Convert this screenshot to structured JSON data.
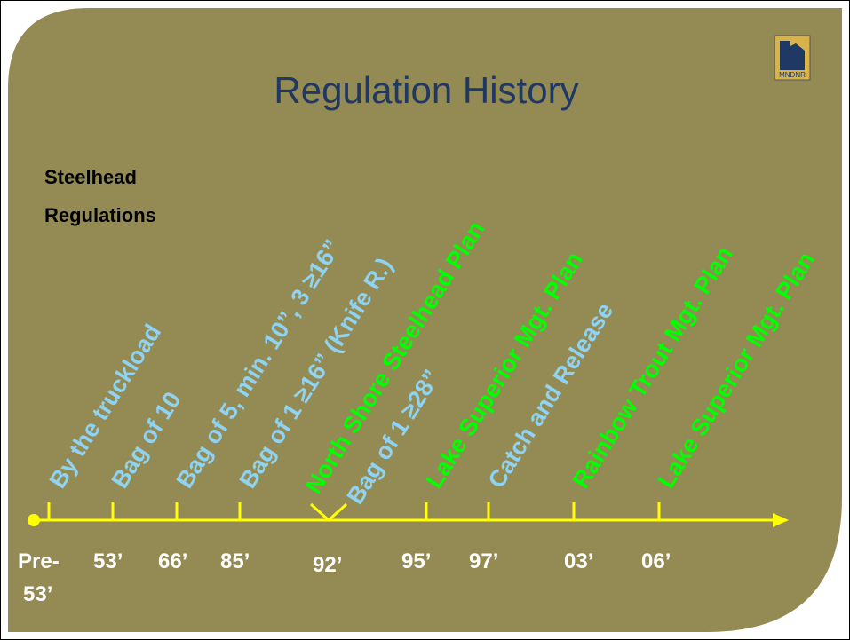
{
  "slide": {
    "title": "Regulation History",
    "logo": "MNDNR",
    "side_label": [
      "Steelhead",
      "Regulations"
    ],
    "events": [
      {
        "text": "By the truckload",
        "color": "#8fd3f2"
      },
      {
        "text": "Bag of 10",
        "color": "#8fd3f2"
      },
      {
        "text": "Bag of 5, min. 10”, 3 ≥16”",
        "color": "#8fd3f2"
      },
      {
        "text": "Bag of 1 ≥16” (Knife R.)",
        "color": "#8fd3f2"
      },
      {
        "text": "North Shore Steelhead Plan",
        "color": "#00ff00"
      },
      {
        "text": "Bag of 1 ≥28”",
        "color": "#8fd3f2"
      },
      {
        "text": "Lake Superior Mgt. Plan",
        "color": "#00ff00"
      },
      {
        "text": "Catch and Release",
        "color": "#8fd3f2"
      },
      {
        "text": "Rainbow Trout Mgt. Plan",
        "color": "#00ff00"
      },
      {
        "text": "Lake Superior Mgt. Plan",
        "color": "#00ff00"
      }
    ],
    "ticks": [
      [
        "Pre-",
        "53’"
      ],
      [
        "53’"
      ],
      [
        "66’"
      ],
      [
        "85’"
      ],
      [
        "92’"
      ],
      [
        "95’"
      ],
      [
        "97’"
      ],
      [
        "03’"
      ],
      [
        "06’"
      ]
    ]
  }
}
